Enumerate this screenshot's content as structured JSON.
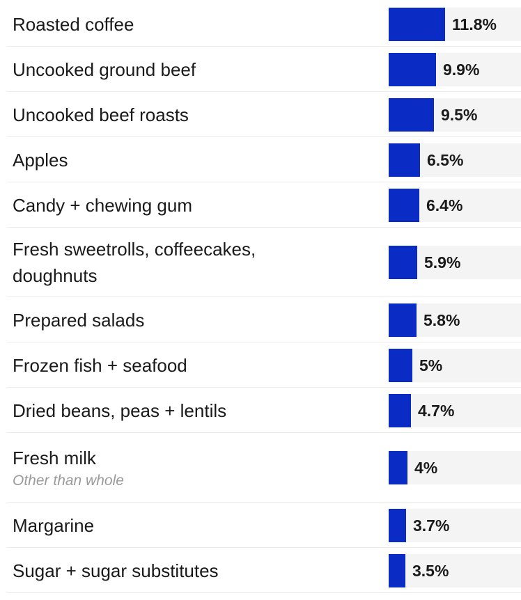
{
  "chart_data": {
    "type": "bar",
    "orientation": "horizontal",
    "bar_color": "#0a2cc4",
    "track_color": "#f4f4f4",
    "xlim": [
      0,
      20
    ],
    "categories": [
      {
        "label": "Roasted coffee",
        "sublabel": "",
        "value": 11.8,
        "value_label": "11.8%"
      },
      {
        "label": "Uncooked ground beef",
        "sublabel": "",
        "value": 9.9,
        "value_label": "9.9%"
      },
      {
        "label": "Uncooked beef roasts",
        "sublabel": "",
        "value": 9.5,
        "value_label": "9.5%"
      },
      {
        "label": "Apples",
        "sublabel": "",
        "value": 6.5,
        "value_label": "6.5%"
      },
      {
        "label": "Candy + chewing gum",
        "sublabel": "",
        "value": 6.4,
        "value_label": "6.4%"
      },
      {
        "label": "Fresh sweetrolls, coffeecakes,\ndoughnuts",
        "sublabel": "",
        "value": 5.9,
        "value_label": "5.9%"
      },
      {
        "label": "Prepared salads",
        "sublabel": "",
        "value": 5.8,
        "value_label": "5.8%"
      },
      {
        "label": "Frozen fish + seafood",
        "sublabel": "",
        "value": 5,
        "value_label": "5%"
      },
      {
        "label": "Dried beans, peas + lentils",
        "sublabel": "",
        "value": 4.7,
        "value_label": "4.7%"
      },
      {
        "label": "Fresh milk",
        "sublabel": "Other than whole",
        "value": 4,
        "value_label": "4%"
      },
      {
        "label": "Margarine",
        "sublabel": "",
        "value": 3.7,
        "value_label": "3.7%"
      },
      {
        "label": "Sugar + sugar substitutes",
        "sublabel": "",
        "value": 3.5,
        "value_label": "3.5%"
      }
    ]
  }
}
